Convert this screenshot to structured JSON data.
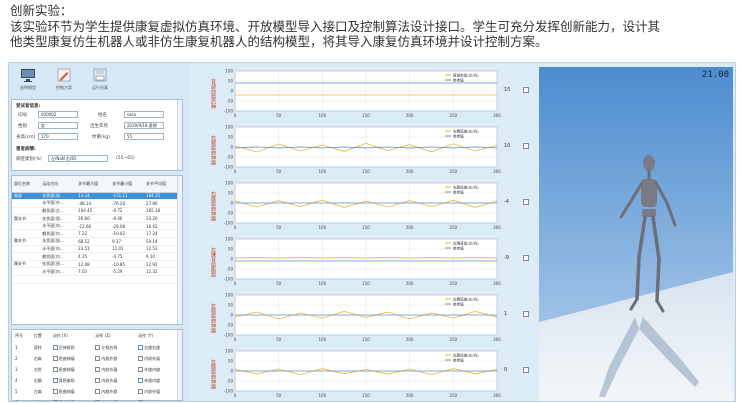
{
  "caption": {
    "line1": "创新实验：",
    "line2": "该实验环节为学生提供康复虚拟仿真环境、开放模型导入接口及控制算法设计接口。学生可充分发挥创新能力，设计其",
    "line3": "他类型康复仿生机器人或非仿生康复机器人的结构模型，将其导入康复仿真环境并设计控制方案。"
  },
  "toolbar": [
    {
      "label": "选择模型",
      "icon": "monitor-icon"
    },
    {
      "label": "控制方案",
      "icon": "edit-icon"
    },
    {
      "label": "运行仿真",
      "icon": "save-icon"
    }
  ],
  "subject": {
    "title": "受试者信息:",
    "id_label": "ID号",
    "id_value": "000002",
    "name_label": "姓名",
    "name_value": "sasa",
    "sex_label": "性别",
    "sex_value": "女",
    "birth_label": "出生年月",
    "birth_value": "2020/9/18 星期",
    "height_label": "身高(cm)",
    "height_value": "170",
    "weight_label": "体重(kg)",
    "weight_value": "55",
    "disease_title": "患者病情:",
    "disease_label": "病症类别(%)",
    "disease_value": "左/NaN 右/85",
    "disease_range": "(55~65)"
  },
  "joints": {
    "headers": [
      "部位名称",
      "运动方向",
      "关节最大值",
      "关节最小值",
      "关节平均值"
    ],
    "rows": [
      [
        "肩部",
        "矢状面(屈...",
        "13.24",
        "-151.11",
        "164.35"
      ],
      [
        "",
        "水平面(外...",
        "-48.14",
        "-76.20",
        "27.86"
      ],
      [
        "",
        "额状面(左...",
        "164.45",
        "-0.72",
        "165.18"
      ],
      [
        "髋关节",
        "矢状面(屈...",
        "26.60",
        "-6.66",
        "33.26"
      ],
      [
        "",
        "水平面(内...",
        "-12.66",
        "-29.08",
        "16.42"
      ],
      [
        "",
        "额状面(内...",
        "7.22",
        "-10.02",
        "17.24"
      ],
      [
        "膝关节",
        "矢状面(屈...",
        "68.52",
        "9.37",
        "59.14"
      ],
      [
        "",
        "水平面(内...",
        "23.51",
        "11.01",
        "12.53"
      ],
      [
        "",
        "额状面(内...",
        "4.35",
        "-4.75",
        "9.10"
      ],
      [
        "踝关节",
        "矢状面(屈...",
        "12.08",
        "-10.85",
        "22.92"
      ],
      [
        "",
        "水平面(内...",
        "7.03",
        "-5.29",
        "12.32"
      ],
      [
        "",
        "",
        "",
        "",
        ""
      ]
    ]
  },
  "actions": {
    "headers": [
      "序号",
      "位置",
      "动作 (X)",
      "动作 (Z)",
      "动作 (Y)"
    ],
    "rows": [
      [
        "1",
        "背柱",
        "后伸前屈",
        "左倾右倾",
        "左旋右旋"
      ],
      [
        "2",
        "右肩",
        "屈曲伸展",
        "内旋外旋",
        "内收外展"
      ],
      [
        "3",
        "右肘",
        "屈曲伸展",
        "内收外展",
        "外旋内旋"
      ],
      [
        "4",
        "右腕",
        "背屈掌屈",
        "内收外展",
        "外旋内旋"
      ],
      [
        "5",
        "左肩",
        "屈曲伸展",
        "内旋外旋",
        "内收外展"
      ],
      [
        "6",
        "左肘",
        "屈曲伸展",
        "内收外展",
        "外旋内旋"
      ]
    ]
  },
  "chart_data": [
    {
      "type": "line",
      "ylabel": "背部前屈后伸",
      "legend": [
        "背部前屈(左/右)",
        "参考值"
      ],
      "series": [
        {
          "values": [
            -20,
            -20,
            -20,
            -20,
            -20,
            -20,
            -20,
            -20,
            -20,
            -20,
            -20,
            -20,
            -20
          ]
        },
        {
          "values": [
            40,
            40,
            40,
            40,
            40,
            40,
            40,
            40,
            40,
            40,
            40,
            40,
            40
          ]
        }
      ],
      "x": [
        0,
        25,
        50,
        75,
        100,
        125,
        150,
        175,
        200,
        225,
        250,
        275,
        300
      ],
      "xlim": [
        0,
        300
      ],
      "ylim": [
        -100,
        100
      ],
      "yticks": [
        100,
        50,
        0,
        -50,
        -100
      ],
      "right_value": "15"
    },
    {
      "type": "line",
      "ylabel": "右髋屈曲伸展",
      "legend": [
        "右髋屈曲(左/右)",
        "参考值"
      ],
      "series": [
        {
          "values": [
            5,
            -25,
            15,
            -20,
            10,
            -22,
            18,
            -18,
            12,
            -24,
            16,
            -20,
            8
          ]
        },
        {
          "values": [
            -5,
            0,
            -5,
            0,
            -5,
            0,
            -5,
            0,
            -5,
            0,
            -5,
            0,
            -5
          ]
        }
      ],
      "x": [
        0,
        25,
        50,
        75,
        100,
        125,
        150,
        175,
        200,
        225,
        250,
        275,
        300
      ],
      "xlim": [
        0,
        300
      ],
      "ylim": [
        -100,
        100
      ],
      "yticks": [
        100,
        50,
        0,
        -50,
        -100
      ],
      "right_value": "10"
    },
    {
      "type": "line",
      "ylabel": "右膝屈曲伸展",
      "legend": [
        "右膝屈曲(左/右)",
        "参考值"
      ],
      "series": [
        {
          "values": [
            10,
            -20,
            12,
            -18,
            14,
            -22,
            10,
            -20,
            12,
            -18,
            14,
            -22,
            10
          ]
        },
        {
          "values": [
            0,
            0,
            0,
            0,
            0,
            0,
            0,
            0,
            0,
            0,
            0,
            0,
            0
          ]
        }
      ],
      "x": [
        0,
        25,
        50,
        75,
        100,
        125,
        150,
        175,
        200,
        225,
        250,
        275,
        300
      ],
      "xlim": [
        0,
        300
      ],
      "ylim": [
        -100,
        100
      ],
      "yticks": [
        100,
        50,
        0,
        -50,
        -100
      ],
      "right_value": "-4"
    },
    {
      "type": "line",
      "ylabel": "左踝背屈跖屈",
      "legend": [
        "左踝背屈(左/右)",
        "参考值"
      ],
      "series": [
        {
          "values": [
            5,
            8,
            5,
            8,
            5,
            8,
            5,
            8,
            5,
            8,
            5,
            8,
            5
          ]
        },
        {
          "values": [
            -10,
            -10,
            -10,
            -10,
            -10,
            -10,
            -10,
            -10,
            -10,
            -10,
            -10,
            -10,
            -10
          ]
        }
      ],
      "x": [
        0,
        25,
        50,
        75,
        100,
        125,
        150,
        175,
        200,
        225,
        250,
        275,
        300
      ],
      "xlim": [
        0,
        300
      ],
      "ylim": [
        -100,
        100
      ],
      "yticks": [
        100,
        50,
        0,
        -50,
        -100
      ],
      "right_value": "-9"
    },
    {
      "type": "line",
      "ylabel": "左髋屈曲伸展",
      "legend": [
        "左髋屈曲(左/右)",
        "参考值"
      ],
      "series": [
        {
          "values": [
            -10,
            15,
            -20,
            10,
            -15,
            18,
            -12,
            15,
            -20,
            10,
            -15,
            18,
            -10
          ]
        },
        {
          "values": [
            0,
            0,
            0,
            0,
            0,
            0,
            0,
            0,
            0,
            0,
            0,
            0,
            0
          ]
        }
      ],
      "x": [
        0,
        25,
        50,
        75,
        100,
        125,
        150,
        175,
        200,
        225,
        250,
        275,
        300
      ],
      "xlim": [
        0,
        300
      ],
      "ylim": [
        -100,
        100
      ],
      "yticks": [
        100,
        50,
        0,
        -50,
        -100
      ],
      "right_value": "1"
    },
    {
      "type": "line",
      "ylabel": "左膝屈曲伸展",
      "legend": [
        "左膝屈曲(左/右)",
        "参考值"
      ],
      "series": [
        {
          "values": [
            8,
            -15,
            10,
            -18,
            12,
            -14,
            8,
            -16,
            10,
            -18,
            12,
            -14,
            8
          ]
        },
        {
          "values": [
            0,
            0,
            0,
            0,
            0,
            0,
            0,
            0,
            0,
            0,
            0,
            0,
            0
          ]
        }
      ],
      "x": [
        0,
        25,
        50,
        75,
        100,
        125,
        150,
        175,
        200,
        225,
        250,
        275,
        300
      ],
      "xlim": [
        0,
        300
      ],
      "ylim": [
        -100,
        100
      ],
      "yticks": [
        100,
        50,
        0,
        -50,
        -100
      ],
      "right_value": "0"
    }
  ],
  "scene": {
    "time": "21.00"
  },
  "colors": {
    "series1": "#e8b730",
    "series2": "#5b8fd6",
    "accent": "#3d8fd6",
    "chart_title": "#c0392b"
  }
}
